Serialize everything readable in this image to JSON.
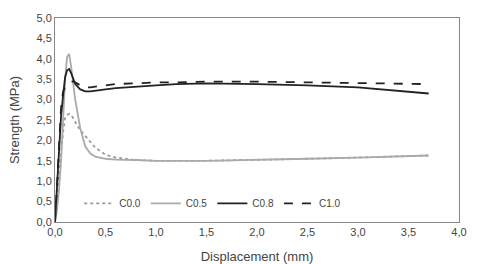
{
  "chart_data": {
    "type": "line",
    "xlabel": "Displacement (mm)",
    "ylabel": "Strength (MPa)",
    "xlim": [
      0.0,
      4.0
    ],
    "ylim": [
      0.0,
      5.0
    ],
    "xticks": [
      {
        "value": 0.0,
        "label": "0,0"
      },
      {
        "value": 0.5,
        "label": "0,5"
      },
      {
        "value": 1.0,
        "label": "1,0"
      },
      {
        "value": 1.5,
        "label": "1,5"
      },
      {
        "value": 2.0,
        "label": "2,0"
      },
      {
        "value": 2.5,
        "label": "2,5"
      },
      {
        "value": 3.0,
        "label": "3,0"
      },
      {
        "value": 3.5,
        "label": "3,5"
      },
      {
        "value": 4.0,
        "label": "4,0"
      }
    ],
    "yticks": [
      {
        "value": 0.0,
        "label": "0,0"
      },
      {
        "value": 0.5,
        "label": "0,5"
      },
      {
        "value": 1.0,
        "label": "1,0"
      },
      {
        "value": 1.5,
        "label": "1,5"
      },
      {
        "value": 2.0,
        "label": "2,0"
      },
      {
        "value": 2.5,
        "label": "2,5"
      },
      {
        "value": 3.0,
        "label": "3,0"
      },
      {
        "value": 3.5,
        "label": "3,5"
      },
      {
        "value": 4.0,
        "label": "4,0"
      },
      {
        "value": 4.5,
        "label": "4,5"
      },
      {
        "value": 5.0,
        "label": "5,0"
      }
    ],
    "grid": false,
    "legend": "lower left",
    "series": [
      {
        "name": "C0.0",
        "color": "#999999",
        "line_style": "dotted",
        "x": [
          0.0,
          0.02,
          0.04,
          0.06,
          0.08,
          0.1,
          0.12,
          0.14,
          0.16,
          0.18,
          0.2,
          0.25,
          0.3,
          0.4,
          0.5,
          0.6,
          0.8,
          1.0,
          1.5,
          2.0,
          2.5,
          3.0,
          3.5,
          3.7
        ],
        "values": [
          0.0,
          0.5,
          1.2,
          1.8,
          2.2,
          2.55,
          2.62,
          2.65,
          2.62,
          2.55,
          2.45,
          2.25,
          2.1,
          1.82,
          1.65,
          1.58,
          1.52,
          1.5,
          1.5,
          1.52,
          1.55,
          1.58,
          1.62,
          1.63
        ]
      },
      {
        "name": "C0.5",
        "color": "#aaaaaa",
        "line_style": "solid",
        "x": [
          0.0,
          0.02,
          0.04,
          0.06,
          0.08,
          0.1,
          0.12,
          0.14,
          0.16,
          0.18,
          0.2,
          0.25,
          0.3,
          0.35,
          0.4,
          0.5,
          0.6,
          0.8,
          1.0,
          1.5,
          2.0,
          2.5,
          3.0,
          3.5,
          3.7
        ],
        "values": [
          0.0,
          0.3,
          0.8,
          1.5,
          2.5,
          3.5,
          4.05,
          4.12,
          3.8,
          3.4,
          3.0,
          2.3,
          1.85,
          1.68,
          1.6,
          1.55,
          1.53,
          1.52,
          1.5,
          1.5,
          1.52,
          1.55,
          1.58,
          1.62,
          1.63
        ]
      },
      {
        "name": "C0.8",
        "color": "#222222",
        "line_style": "solid",
        "x": [
          0.0,
          0.02,
          0.04,
          0.06,
          0.08,
          0.1,
          0.12,
          0.14,
          0.16,
          0.18,
          0.2,
          0.25,
          0.3,
          0.35,
          0.4,
          0.5,
          0.6,
          0.8,
          1.0,
          1.2,
          1.5,
          2.0,
          2.5,
          3.0,
          3.5,
          3.7
        ],
        "values": [
          0.0,
          0.8,
          1.8,
          2.6,
          3.1,
          3.55,
          3.72,
          3.75,
          3.65,
          3.5,
          3.38,
          3.25,
          3.2,
          3.2,
          3.22,
          3.25,
          3.28,
          3.32,
          3.35,
          3.38,
          3.4,
          3.38,
          3.35,
          3.3,
          3.2,
          3.15
        ]
      },
      {
        "name": "C1.0",
        "color": "#222222",
        "line_style": "dashed",
        "x": [
          0.0,
          0.02,
          0.04,
          0.06,
          0.08,
          0.1,
          0.12,
          0.15,
          0.18,
          0.2,
          0.25,
          0.3,
          0.35,
          0.4,
          0.5,
          0.6,
          0.8,
          1.0,
          1.2,
          1.5,
          2.0,
          2.5,
          3.0,
          3.5,
          3.7
        ],
        "values": [
          0.0,
          1.0,
          2.0,
          2.8,
          3.2,
          3.3,
          3.35,
          3.42,
          3.45,
          3.42,
          3.35,
          3.3,
          3.3,
          3.32,
          3.35,
          3.38,
          3.4,
          3.42,
          3.42,
          3.44,
          3.44,
          3.42,
          3.4,
          3.38,
          3.38
        ]
      }
    ]
  }
}
